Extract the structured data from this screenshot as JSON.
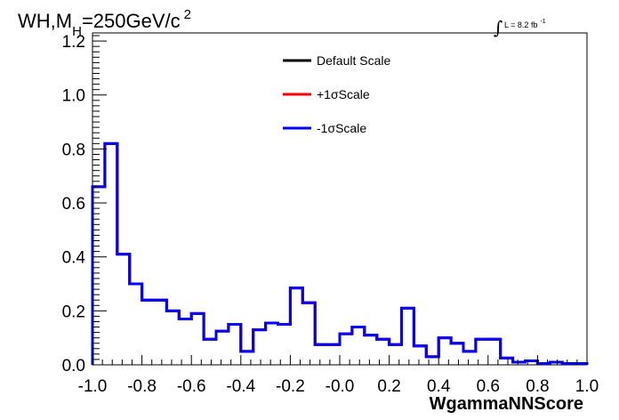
{
  "title": {
    "main": "WH,M",
    "sub": "H",
    "rest": "=250GeV/c",
    "sup": "2"
  },
  "lumi": {
    "integral": "∫",
    "text": "L = 8.2 fb",
    "sup": "-1"
  },
  "chart_data": {
    "type": "line",
    "title": "",
    "xlabel": "WgammaNNScore",
    "ylabel": "",
    "xlim": [
      -1.0,
      1.0
    ],
    "ylim": [
      0,
      1.23
    ],
    "grid": false,
    "legend_position": "top-center",
    "x_ticks": [
      "-1.0",
      "-0.8",
      "-0.6",
      "-0.4",
      "-0.2",
      "-0.0",
      "0.2",
      "0.4",
      "0.6",
      "0.8",
      "1.0"
    ],
    "y_ticks": [
      "0.0",
      "0.2",
      "0.4",
      "0.6",
      "0.8",
      "1.0",
      "1.2"
    ],
    "bin_edges": [
      -1.0,
      -0.95,
      -0.9,
      -0.85,
      -0.8,
      -0.75,
      -0.7,
      -0.65,
      -0.6,
      -0.55,
      -0.5,
      -0.45,
      -0.4,
      -0.35,
      -0.3,
      -0.25,
      -0.2,
      -0.15,
      -0.1,
      -0.05,
      0.0,
      0.05,
      0.1,
      0.15,
      0.2,
      0.25,
      0.3,
      0.35,
      0.4,
      0.45,
      0.5,
      0.55,
      0.6,
      0.65,
      0.7,
      0.75,
      0.8,
      0.85,
      0.9,
      0.95,
      1.0
    ],
    "series": [
      {
        "name": "Default Scale",
        "color": "#000000",
        "values": [
          0.66,
          0.82,
          0.41,
          0.3,
          0.24,
          0.24,
          0.2,
          0.17,
          0.19,
          0.095,
          0.125,
          0.15,
          0.05,
          0.13,
          0.155,
          0.15,
          0.285,
          0.23,
          0.075,
          0.075,
          0.115,
          0.14,
          0.11,
          0.095,
          0.075,
          0.21,
          0.07,
          0.03,
          0.1,
          0.08,
          0.05,
          0.095,
          0.095,
          0.025,
          0.01,
          0.015,
          0.005,
          0.01,
          0.005,
          0.005
        ]
      },
      {
        "name": "+1σScale",
        "color": "#ff0000",
        "values": [
          0.66,
          0.82,
          0.41,
          0.3,
          0.24,
          0.24,
          0.2,
          0.17,
          0.19,
          0.095,
          0.125,
          0.15,
          0.05,
          0.13,
          0.155,
          0.15,
          0.285,
          0.23,
          0.075,
          0.075,
          0.115,
          0.14,
          0.11,
          0.095,
          0.075,
          0.21,
          0.07,
          0.03,
          0.1,
          0.08,
          0.05,
          0.095,
          0.095,
          0.025,
          0.01,
          0.015,
          0.005,
          0.01,
          0.005,
          0.005
        ]
      },
      {
        "name": "-1σScale",
        "color": "#0000ff",
        "values": [
          0.66,
          0.82,
          0.41,
          0.3,
          0.24,
          0.24,
          0.2,
          0.17,
          0.19,
          0.095,
          0.125,
          0.15,
          0.05,
          0.13,
          0.155,
          0.15,
          0.285,
          0.23,
          0.075,
          0.075,
          0.115,
          0.14,
          0.11,
          0.095,
          0.075,
          0.21,
          0.07,
          0.03,
          0.1,
          0.08,
          0.05,
          0.095,
          0.095,
          0.025,
          0.01,
          0.015,
          0.005,
          0.01,
          0.005,
          0.005
        ]
      }
    ]
  }
}
